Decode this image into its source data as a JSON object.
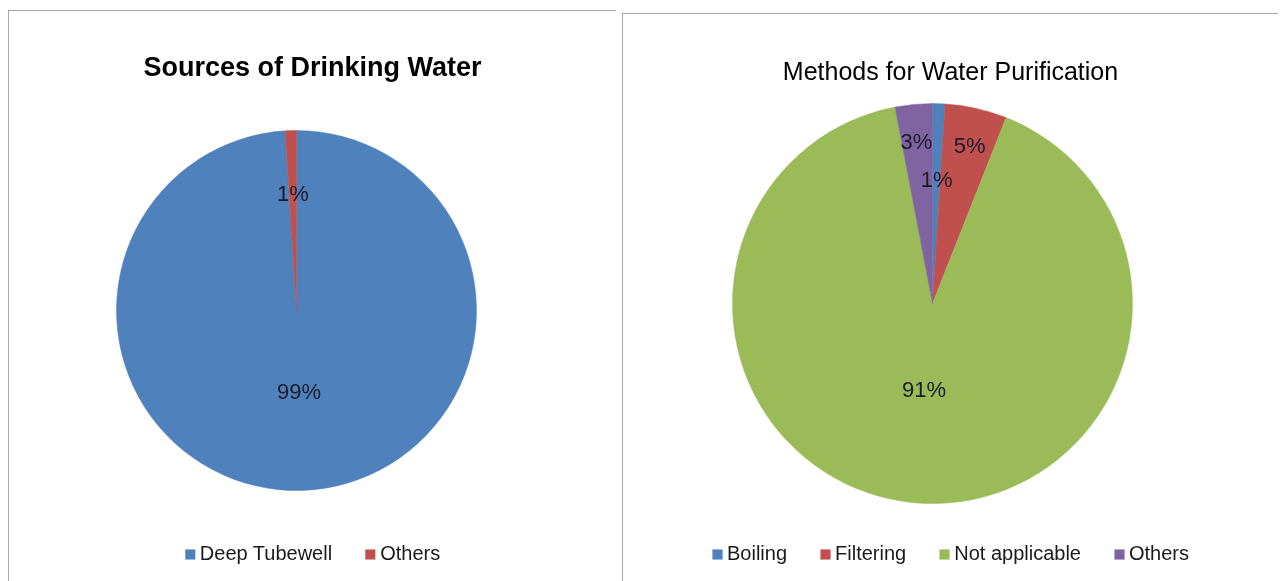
{
  "chart_data": [
    {
      "type": "pie",
      "title": "Sources of Drinking Water",
      "categories": [
        "Deep Tubewell",
        "Others"
      ],
      "values": [
        99,
        1
      ],
      "colors": [
        "#4f81bd",
        "#c0504d"
      ],
      "value_labels": [
        "99%",
        "1%"
      ],
      "legend": "bottom"
    },
    {
      "type": "pie",
      "title": "Methods for Water Purification",
      "categories": [
        "Boiling",
        "Filtering",
        "Not applicable",
        "Others"
      ],
      "values": [
        1,
        5,
        91,
        3
      ],
      "colors": [
        "#4f81bd",
        "#c0504d",
        "#9bbb59",
        "#8064a2"
      ],
      "value_labels": [
        "1%",
        "5%",
        "91%",
        "3%"
      ],
      "legend": "bottom"
    }
  ]
}
